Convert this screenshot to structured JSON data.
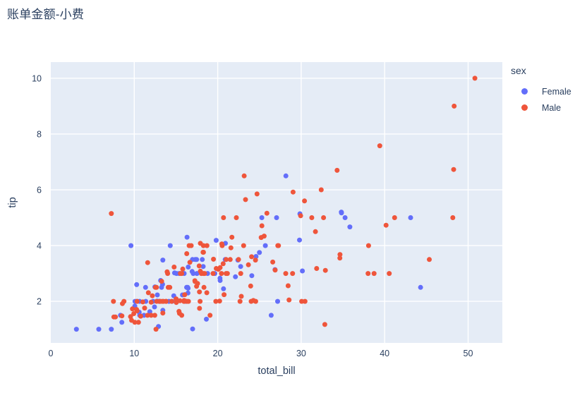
{
  "chart_data": {
    "type": "scatter",
    "title": "账单金额-小费",
    "xlabel": "total_bill",
    "ylabel": "tip",
    "x_ticks": [
      0,
      10,
      20,
      30,
      40,
      50
    ],
    "y_ticks": [
      2,
      4,
      6,
      8,
      10
    ],
    "x_range": [
      0,
      54.1
    ],
    "y_range": [
      0.51,
      10.58
    ],
    "grid": true,
    "legend": {
      "title": "sex",
      "position": "top-right-outside"
    },
    "colors": {
      "plot_background": "#E5ECF6",
      "gridline": "#FFFFFF",
      "text": "#2A3F5F",
      "female": "#636EFA",
      "male": "#EF553B"
    },
    "series": [
      {
        "name": "Female",
        "color": "#636EFA",
        "points": [
          [
            16.99,
            1.01
          ],
          [
            24.59,
            3.61
          ],
          [
            35.26,
            5.0
          ],
          [
            14.83,
            3.02
          ],
          [
            10.33,
            1.67
          ],
          [
            16.97,
            3.5
          ],
          [
            20.29,
            2.75
          ],
          [
            15.77,
            2.23
          ],
          [
            19.65,
            3.0
          ],
          [
            15.06,
            3.0
          ],
          [
            20.69,
            2.45
          ],
          [
            16.93,
            3.07
          ],
          [
            10.29,
            2.6
          ],
          [
            34.81,
            5.2
          ],
          [
            26.41,
            1.5
          ],
          [
            16.45,
            2.47
          ],
          [
            3.07,
            1.0
          ],
          [
            17.07,
            3.0
          ],
          [
            26.86,
            3.14
          ],
          [
            25.28,
            5.0
          ],
          [
            14.73,
            2.2
          ],
          [
            10.07,
            1.83
          ],
          [
            34.83,
            5.17
          ],
          [
            5.75,
            1.0
          ],
          [
            16.32,
            4.3
          ],
          [
            22.75,
            3.25
          ],
          [
            11.35,
            2.5
          ],
          [
            15.38,
            3.0
          ],
          [
            44.3,
            2.5
          ],
          [
            22.42,
            3.48
          ],
          [
            20.92,
            4.08
          ],
          [
            14.31,
            4.0
          ],
          [
            7.25,
            1.0
          ],
          [
            25.71,
            4.0
          ],
          [
            17.31,
            3.5
          ],
          [
            10.65,
            1.5
          ],
          [
            12.43,
            1.8
          ],
          [
            24.08,
            2.92
          ],
          [
            13.42,
            1.68
          ],
          [
            12.48,
            2.52
          ],
          [
            29.8,
            4.2
          ],
          [
            14.52,
            2.0
          ],
          [
            11.38,
            2.0
          ],
          [
            20.27,
            2.83
          ],
          [
            11.17,
            1.5
          ],
          [
            12.26,
            2.0
          ],
          [
            18.26,
            3.25
          ],
          [
            8.51,
            1.25
          ],
          [
            10.33,
            2.0
          ],
          [
            14.15,
            2.0
          ],
          [
            13.16,
            2.75
          ],
          [
            17.47,
            3.5
          ],
          [
            27.05,
            5.0
          ],
          [
            16.43,
            2.3
          ],
          [
            8.35,
            1.5
          ],
          [
            18.64,
            1.36
          ],
          [
            11.87,
            1.63
          ],
          [
            29.85,
            5.14
          ],
          [
            25.0,
            3.75
          ],
          [
            13.39,
            2.61
          ],
          [
            16.21,
            2.0
          ],
          [
            17.51,
            3.0
          ],
          [
            10.59,
            1.61
          ],
          [
            10.63,
            2.0
          ],
          [
            9.6,
            4.0
          ],
          [
            20.9,
            3.5
          ],
          [
            18.15,
            3.5
          ],
          [
            19.81,
            4.19
          ],
          [
            43.11,
            5.0
          ],
          [
            13.0,
            2.0
          ],
          [
            12.74,
            2.01
          ],
          [
            13.0,
            2.0
          ],
          [
            16.4,
            2.5
          ],
          [
            16.47,
            3.23
          ],
          [
            12.76,
            2.23
          ],
          [
            13.27,
            2.5
          ],
          [
            28.17,
            6.5
          ],
          [
            12.9,
            1.1
          ],
          [
            30.14,
            3.09
          ],
          [
            13.42,
            3.48
          ],
          [
            15.98,
            3.0
          ],
          [
            16.27,
            2.5
          ],
          [
            10.09,
            2.0
          ],
          [
            22.12,
            2.88
          ],
          [
            35.83,
            4.67
          ],
          [
            27.18,
            2.0
          ],
          [
            18.78,
            3.0
          ]
        ]
      },
      {
        "name": "Male",
        "color": "#EF553B",
        "points": [
          [
            10.34,
            1.66
          ],
          [
            21.01,
            3.5
          ],
          [
            23.68,
            3.31
          ],
          [
            25.29,
            4.71
          ],
          [
            8.77,
            2.0
          ],
          [
            26.88,
            3.12
          ],
          [
            15.04,
            1.96
          ],
          [
            14.78,
            3.23
          ],
          [
            10.27,
            1.71
          ],
          [
            15.42,
            1.57
          ],
          [
            18.43,
            3.0
          ],
          [
            21.58,
            3.92
          ],
          [
            16.29,
            3.71
          ],
          [
            20.65,
            3.35
          ],
          [
            17.92,
            4.08
          ],
          [
            39.42,
            7.58
          ],
          [
            19.82,
            3.18
          ],
          [
            17.81,
            2.34
          ],
          [
            13.37,
            2.0
          ],
          [
            12.69,
            2.0
          ],
          [
            21.7,
            4.3
          ],
          [
            9.55,
            1.45
          ],
          [
            18.35,
            2.5
          ],
          [
            17.78,
            3.27
          ],
          [
            24.06,
            3.6
          ],
          [
            16.31,
            2.0
          ],
          [
            18.69,
            2.31
          ],
          [
            31.27,
            5.0
          ],
          [
            16.04,
            2.24
          ],
          [
            17.46,
            2.54
          ],
          [
            13.94,
            3.06
          ],
          [
            9.68,
            1.32
          ],
          [
            30.4,
            5.6
          ],
          [
            18.29,
            3.0
          ],
          [
            22.23,
            5.0
          ],
          [
            32.4,
            6.0
          ],
          [
            28.55,
            2.05
          ],
          [
            18.04,
            3.0
          ],
          [
            12.54,
            2.5
          ],
          [
            9.94,
            1.56
          ],
          [
            25.56,
            4.34
          ],
          [
            19.49,
            3.51
          ],
          [
            38.01,
            3.0
          ],
          [
            11.24,
            1.76
          ],
          [
            48.27,
            6.73
          ],
          [
            20.29,
            3.21
          ],
          [
            13.81,
            2.0
          ],
          [
            11.02,
            1.98
          ],
          [
            18.29,
            3.76
          ],
          [
            17.59,
            2.64
          ],
          [
            20.08,
            3.15
          ],
          [
            20.23,
            2.01
          ],
          [
            15.01,
            2.09
          ],
          [
            12.02,
            1.97
          ],
          [
            10.51,
            1.25
          ],
          [
            17.92,
            3.08
          ],
          [
            27.2,
            4.0
          ],
          [
            22.76,
            3.0
          ],
          [
            17.29,
            2.71
          ],
          [
            19.44,
            3.0
          ],
          [
            16.66,
            3.4
          ],
          [
            32.68,
            5.0
          ],
          [
            15.98,
            2.03
          ],
          [
            13.03,
            2.0
          ],
          [
            18.28,
            4.0
          ],
          [
            24.71,
            5.85
          ],
          [
            21.16,
            3.0
          ],
          [
            28.97,
            3.0
          ],
          [
            22.49,
            3.5
          ],
          [
            40.17,
            4.73
          ],
          [
            27.28,
            4.0
          ],
          [
            12.03,
            1.5
          ],
          [
            21.01,
            3.0
          ],
          [
            12.46,
            1.5
          ],
          [
            15.36,
            1.64
          ],
          [
            20.49,
            4.06
          ],
          [
            25.21,
            4.29
          ],
          [
            18.24,
            3.76
          ],
          [
            14.0,
            3.0
          ],
          [
            38.07,
            4.0
          ],
          [
            23.95,
            2.55
          ],
          [
            29.93,
            5.07
          ],
          [
            11.69,
            2.31
          ],
          [
            14.26,
            2.5
          ],
          [
            15.95,
            2.0
          ],
          [
            8.52,
            1.48
          ],
          [
            22.82,
            2.18
          ],
          [
            19.08,
            1.5
          ],
          [
            16.0,
            2.0
          ],
          [
            34.3,
            6.7
          ],
          [
            41.19,
            5.0
          ],
          [
            9.78,
            1.73
          ],
          [
            7.51,
            2.0
          ],
          [
            14.07,
            2.5
          ],
          [
            13.13,
            2.0
          ],
          [
            17.26,
            2.74
          ],
          [
            24.55,
            2.0
          ],
          [
            19.77,
            2.0
          ],
          [
            48.17,
            5.0
          ],
          [
            16.49,
            2.0
          ],
          [
            21.5,
            3.5
          ],
          [
            12.66,
            2.5
          ],
          [
            13.81,
            2.0
          ],
          [
            24.52,
            3.48
          ],
          [
            20.76,
            2.24
          ],
          [
            31.71,
            4.5
          ],
          [
            50.81,
            10.0
          ],
          [
            15.81,
            3.16
          ],
          [
            7.25,
            5.15
          ],
          [
            31.85,
            3.18
          ],
          [
            16.82,
            4.0
          ],
          [
            32.9,
            3.11
          ],
          [
            17.89,
            2.0
          ],
          [
            14.48,
            2.0
          ],
          [
            34.63,
            3.55
          ],
          [
            34.65,
            3.68
          ],
          [
            23.33,
            5.65
          ],
          [
            45.35,
            3.5
          ],
          [
            23.17,
            6.5
          ],
          [
            40.55,
            3.0
          ],
          [
            20.69,
            5.0
          ],
          [
            30.46,
            2.0
          ],
          [
            23.1,
            4.0
          ],
          [
            15.69,
            1.5
          ],
          [
            28.44,
            2.56
          ],
          [
            15.48,
            2.02
          ],
          [
            16.58,
            4.0
          ],
          [
            7.56,
            1.44
          ],
          [
            10.34,
            2.0
          ],
          [
            13.51,
            2.0
          ],
          [
            18.71,
            4.0
          ],
          [
            20.53,
            4.0
          ],
          [
            26.59,
            3.41
          ],
          [
            38.73,
            3.0
          ],
          [
            24.27,
            2.03
          ],
          [
            30.06,
            2.0
          ],
          [
            25.89,
            5.16
          ],
          [
            48.33,
            9.0
          ],
          [
            28.15,
            3.0
          ],
          [
            11.59,
            1.5
          ],
          [
            7.74,
            1.44
          ],
          [
            12.16,
            2.2
          ],
          [
            8.58,
            1.92
          ],
          [
            13.42,
            1.58
          ],
          [
            20.45,
            3.0
          ],
          [
            13.28,
            2.72
          ],
          [
            24.01,
            2.0
          ],
          [
            15.69,
            3.0
          ],
          [
            11.61,
            3.39
          ],
          [
            10.77,
            1.47
          ],
          [
            15.53,
            3.0
          ],
          [
            10.07,
            1.25
          ],
          [
            12.6,
            1.0
          ],
          [
            32.83,
            1.17
          ],
          [
            29.03,
            5.92
          ],
          [
            22.67,
            2.0
          ],
          [
            17.82,
            1.75
          ]
        ]
      }
    ]
  }
}
